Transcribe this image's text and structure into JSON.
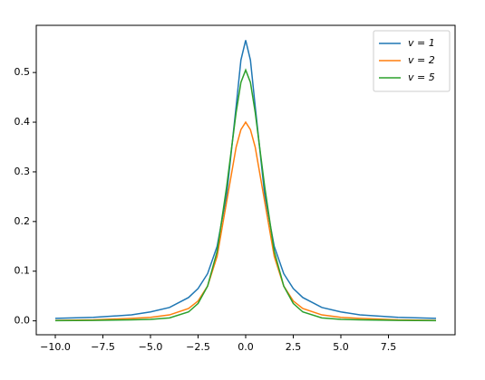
{
  "chart_data": {
    "type": "line",
    "x": [
      -10,
      -8,
      -6,
      -5,
      -4,
      -3,
      -2.5,
      -2,
      -1.5,
      -1,
      -0.5,
      -0.25,
      0,
      0.25,
      0.5,
      1,
      1.5,
      2,
      2.5,
      3,
      4,
      5,
      6,
      8,
      10
    ],
    "series": [
      {
        "name": "v = 1",
        "color": "#1f77b4",
        "values": [
          0.005,
          0.007,
          0.012,
          0.018,
          0.027,
          0.047,
          0.065,
          0.095,
          0.15,
          0.253,
          0.432,
          0.525,
          0.565,
          0.525,
          0.432,
          0.253,
          0.15,
          0.095,
          0.065,
          0.047,
          0.027,
          0.018,
          0.012,
          0.007,
          0.005
        ]
      },
      {
        "name": "v = 2",
        "color": "#ff7f0e",
        "values": [
          0.001,
          0.002,
          0.005,
          0.007,
          0.012,
          0.025,
          0.04,
          0.07,
          0.13,
          0.24,
          0.35,
          0.385,
          0.4,
          0.385,
          0.35,
          0.24,
          0.13,
          0.07,
          0.04,
          0.025,
          0.012,
          0.007,
          0.005,
          0.002,
          0.001
        ]
      },
      {
        "name": "v = 5",
        "color": "#2ca02c",
        "values": [
          0.0005,
          0.001,
          0.002,
          0.003,
          0.006,
          0.018,
          0.035,
          0.07,
          0.14,
          0.27,
          0.42,
          0.48,
          0.505,
          0.48,
          0.42,
          0.27,
          0.14,
          0.07,
          0.035,
          0.018,
          0.006,
          0.003,
          0.002,
          0.001,
          0.0005
        ]
      }
    ],
    "xlim": [
      -11,
      11
    ],
    "ylim": [
      -0.028,
      0.595
    ],
    "xticks": [
      {
        "value": -10,
        "label": "−10.0"
      },
      {
        "value": -7.5,
        "label": "−7.5"
      },
      {
        "value": -5,
        "label": "−5.0"
      },
      {
        "value": -2.5,
        "label": "−2.5"
      },
      {
        "value": 0,
        "label": "0.0"
      },
      2.5,
      {
        "value": 5,
        "label": "5.0"
      },
      7.5
    ],
    "yticks": [
      {
        "value": 0,
        "label": "0.0"
      },
      0.1,
      0.2,
      0.3,
      0.4,
      0.5
    ],
    "legend": "upper right"
  }
}
